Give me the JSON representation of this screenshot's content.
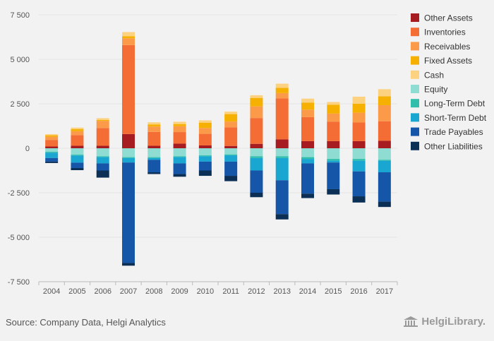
{
  "chart_data": {
    "type": "bar",
    "stacked": true,
    "categories": [
      "2004",
      "2005",
      "2006",
      "2007",
      "2008",
      "2009",
      "2010",
      "2011",
      "2012",
      "2013",
      "2014",
      "2015",
      "2016",
      "2017"
    ],
    "ylim": [
      -7500,
      7500
    ],
    "yticks": [
      7500,
      5000,
      2500,
      0,
      -2500,
      -5000,
      -7500
    ],
    "ytick_labels": [
      "7 500",
      "5 000",
      "2 500",
      "0",
      "-2 500",
      "-5 000",
      "-7 500"
    ],
    "grid": true,
    "legend_position": "right",
    "series": [
      {
        "name": "Other Assets",
        "color": "#a71c20",
        "values": [
          100,
          140,
          140,
          800,
          140,
          260,
          160,
          130,
          250,
          500,
          400,
          400,
          400,
          420
        ]
      },
      {
        "name": "Inventories",
        "color": "#f46d35",
        "values": [
          370,
          600,
          1000,
          5000,
          780,
          650,
          650,
          1050,
          1450,
          2300,
          1350,
          1100,
          1050,
          1100
        ]
      },
      {
        "name": "Receivables",
        "color": "#fb9b4a",
        "values": [
          180,
          220,
          400,
          380,
          300,
          330,
          330,
          320,
          650,
          300,
          420,
          450,
          550,
          900
        ]
      },
      {
        "name": "Fixed Assets",
        "color": "#f6b000",
        "values": [
          80,
          120,
          50,
          120,
          120,
          120,
          300,
          420,
          480,
          300,
          400,
          500,
          500,
          500
        ]
      },
      {
        "name": "Cash",
        "color": "#fcd17f",
        "values": [
          60,
          80,
          100,
          230,
          120,
          130,
          130,
          140,
          150,
          230,
          220,
          150,
          400,
          400
        ]
      },
      {
        "name": "Equity",
        "color": "#8fdcd3",
        "values": [
          -200,
          -360,
          -450,
          -500,
          -500,
          -450,
          -400,
          -350,
          -450,
          -450,
          -500,
          -600,
          -600,
          -650
        ]
      },
      {
        "name": "Long-Term Debt",
        "color": "#2fbeaa",
        "values": [
          -50,
          -50,
          -50,
          -50,
          -50,
          -50,
          -50,
          -50,
          -100,
          -100,
          -100,
          -100,
          -100,
          -50
        ]
      },
      {
        "name": "Short-Term Debt",
        "color": "#19a6d1",
        "values": [
          -300,
          -400,
          -350,
          -250,
          -100,
          -350,
          -300,
          -350,
          -700,
          -1250,
          -250,
          -100,
          -600,
          -650
        ]
      },
      {
        "name": "Trade Payables",
        "color": "#1656a8",
        "values": [
          -200,
          -300,
          -400,
          -5650,
          -700,
          -600,
          -500,
          -800,
          -1250,
          -1900,
          -1700,
          -1500,
          -1400,
          -1650
        ]
      },
      {
        "name": "Other Liabilities",
        "color": "#0c2f55",
        "values": [
          -80,
          -120,
          -400,
          -150,
          -100,
          -150,
          -300,
          -300,
          -250,
          -300,
          -250,
          -300,
          -350,
          -300
        ]
      }
    ]
  },
  "footer": {
    "source": "Source: Company Data, Helgi Analytics",
    "logo_text": "HelgiLibrary."
  },
  "colors": {
    "background": "#f2f2f2",
    "grid": "#e4e4e4",
    "axis": "#bbbbbb",
    "logo": "#9a9a9a"
  }
}
